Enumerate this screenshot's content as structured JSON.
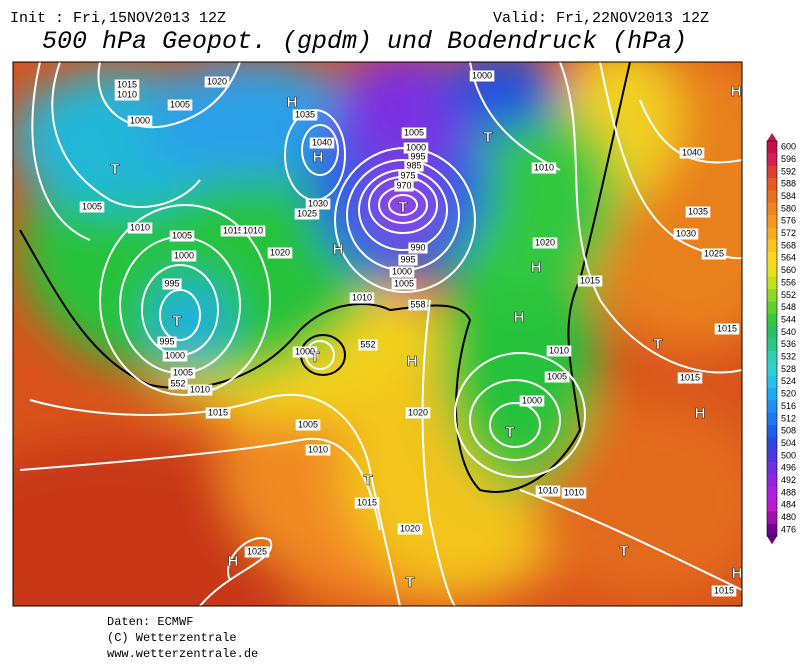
{
  "header": {
    "init": "Init : Fri,15NOV2013 12Z",
    "valid": "Valid: Fri,22NOV2013 12Z",
    "title": "500 hPa Geopot. (gpdm) und Bodendruck (hPa)"
  },
  "colorbar": {
    "labels": [
      600,
      596,
      592,
      588,
      584,
      580,
      576,
      572,
      568,
      564,
      560,
      556,
      552,
      548,
      544,
      540,
      536,
      532,
      528,
      524,
      520,
      516,
      512,
      508,
      504,
      500,
      496,
      492,
      488,
      484,
      480,
      476
    ]
  },
  "map": {
    "labels": [
      "1015",
      "1010",
      "1020",
      "1005",
      "H",
      "1035",
      "1000",
      "1040",
      "H",
      "T",
      "1005",
      "1030",
      "1025",
      "1010",
      "1005",
      "1015",
      "1010",
      "1020",
      "H",
      "1000",
      "995",
      "T",
      "995",
      "1000",
      "1005",
      "1010",
      "552",
      "1015",
      "1005",
      "1010",
      "552",
      "1000",
      "T",
      "H",
      "1020",
      "T",
      "1015",
      "1020",
      "T",
      "H",
      "1025",
      "1000",
      "T",
      "1005",
      "1000",
      "995",
      "985",
      "975",
      "970",
      "T",
      "990",
      "995",
      "1000",
      "1005",
      "1010",
      "558",
      "1010",
      "1020",
      "H",
      "1015",
      "H",
      "1010",
      "1005",
      "1000",
      "T",
      "1010",
      "1010",
      "T",
      "H",
      "1040",
      "1035",
      "1030",
      "1025",
      "1015",
      "1015",
      "T",
      "H",
      "1015",
      "H"
    ]
  },
  "footer": {
    "source": "Daten: ECMWF",
    "copyright": "(C) Wetterzentrale",
    "url": "www.wetterzentrale.de"
  }
}
